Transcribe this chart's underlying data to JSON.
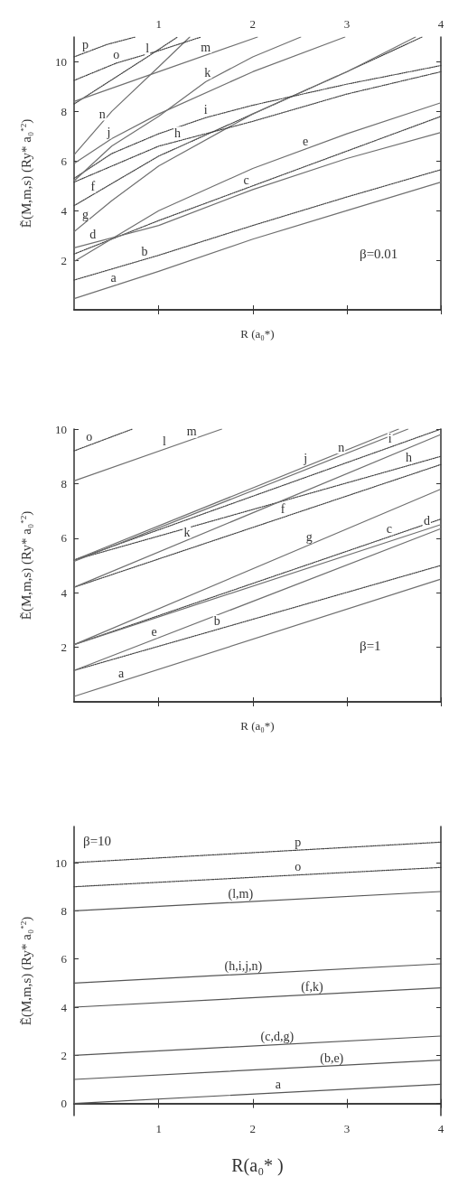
{
  "chart_data": [
    {
      "type": "line",
      "xlabel": "R (a₀*)",
      "ylabel": "Ẽ(M,m,s) (Ry* a₀$^{*2}$)",
      "marker": "none",
      "xlim": [
        0.1,
        4
      ],
      "ylim": [
        0,
        11
      ],
      "xticks": [
        1,
        2,
        3,
        4
      ],
      "yticks": [
        2,
        4,
        6,
        8,
        10
      ],
      "series": [
        {
          "color": "#707070",
          "line_style": "solid",
          "x": [
            0.1,
            1,
            2,
            3,
            4
          ],
          "values": [
            0.45,
            1.55,
            2.85,
            4.0,
            5.15
          ]
        },
        {
          "color": "#404040",
          "line_style": "dotted",
          "x": [
            0.1,
            1,
            2,
            3,
            4
          ],
          "values": [
            1.2,
            2.2,
            3.4,
            4.55,
            5.65
          ]
        },
        {
          "color": "#404040",
          "line_style": "dotted",
          "x": [
            0.1,
            1,
            2,
            3,
            4
          ],
          "values": [
            2.25,
            3.6,
            5.0,
            6.4,
            7.8
          ]
        },
        {
          "color": "#707070",
          "line_style": "solid",
          "x": [
            0.1,
            1,
            2,
            3,
            4
          ],
          "values": [
            2.5,
            3.4,
            4.85,
            6.1,
            7.15
          ]
        },
        {
          "color": "#707070",
          "line_style": "solid",
          "x": [
            0.1,
            1,
            2,
            3,
            4
          ],
          "values": [
            1.95,
            4.0,
            5.7,
            7.1,
            8.35
          ]
        },
        {
          "color": "#404040",
          "line_style": "dotted",
          "x": [
            0.1,
            1,
            2,
            3,
            3.8
          ],
          "values": [
            4.2,
            6.2,
            7.9,
            9.6,
            11
          ]
        },
        {
          "color": "#707070",
          "line_style": "solid",
          "x": [
            0.1,
            0.5,
            1,
            2,
            3,
            3.73
          ],
          "values": [
            3.15,
            4.4,
            5.8,
            7.9,
            9.6,
            11
          ]
        },
        {
          "color": "#404040",
          "line_style": "dotted",
          "x": [
            0.1,
            1,
            2,
            3,
            4
          ],
          "values": [
            5.15,
            6.6,
            7.6,
            8.7,
            9.6
          ]
        },
        {
          "color": "#404040",
          "line_style": "dotted",
          "x": [
            0.1,
            0.5,
            1,
            1.5,
            2,
            3,
            4
          ],
          "values": [
            5.3,
            6.3,
            7.1,
            7.75,
            8.25,
            9.1,
            9.85
          ]
        },
        {
          "color": "#707070",
          "line_style": "solid",
          "x": [
            0.1,
            0.5,
            1,
            2,
            2.98
          ],
          "values": [
            5.9,
            6.9,
            7.9,
            9.6,
            11
          ]
        },
        {
          "color": "#707070",
          "line_style": "solid",
          "x": [
            0.1,
            0.5,
            1,
            1.5,
            2,
            2.51
          ],
          "values": [
            5.2,
            6.6,
            7.8,
            9.2,
            10.2,
            11
          ]
        },
        {
          "color": "#404040",
          "line_style": "dotted",
          "x": [
            0.1,
            0.88,
            1.2
          ],
          "values": [
            8.3,
            10.2,
            11
          ]
        },
        {
          "color": "#707070",
          "line_style": "solid",
          "x": [
            0.1,
            1,
            2.05
          ],
          "values": [
            8.4,
            9.6,
            11
          ]
        },
        {
          "color": "#707070",
          "line_style": "solid",
          "x": [
            0.1,
            0.5,
            1,
            1.33
          ],
          "values": [
            6.25,
            8.0,
            9.8,
            11
          ]
        },
        {
          "color": "#404040",
          "line_style": "dotted",
          "x": [
            0.1,
            0.55,
            1,
            1.45
          ],
          "values": [
            9.25,
            9.95,
            10.45,
            11
          ]
        },
        {
          "color": "#404040",
          "line_style": "dotted",
          "x": [
            0.1,
            0.45,
            0.75
          ],
          "values": [
            10.2,
            10.7,
            11
          ]
        }
      ],
      "annotations": [
        "β=0.01",
        {
          "text": "a",
          "x": 0.52,
          "y": 0.96
        },
        {
          "text": "b",
          "x": 0.85,
          "y": 2.03
        },
        {
          "text": "c",
          "x": 1.93,
          "y": 4.9
        },
        {
          "text": "d",
          "x": 0.3,
          "y": 2.7
        },
        {
          "text": "e",
          "x": 2.56,
          "y": 6.48
        },
        {
          "text": "f",
          "x": 0.3,
          "y": 4.64
        },
        {
          "text": "g",
          "x": 0.22,
          "y": 3.53
        },
        {
          "text": "h",
          "x": 1.2,
          "y": 6.8
        },
        {
          "text": "i",
          "x": 1.5,
          "y": 7.75
        },
        {
          "text": "j",
          "x": 0.47,
          "y": 6.83
        },
        {
          "text": "k",
          "x": 1.52,
          "y": 9.24
        },
        {
          "text": "l",
          "x": 0.88,
          "y": 10.2
        },
        {
          "text": "m",
          "x": 1.5,
          "y": 10.27
        },
        {
          "text": "n",
          "x": 0.4,
          "y": 7.56
        },
        {
          "text": "o",
          "x": 0.55,
          "y": 9.95
        },
        {
          "text": "p",
          "x": 0.22,
          "y": 10.37
        }
      ]
    },
    {
      "type": "line",
      "xlabel": "R (a₀*)",
      "ylabel": "Ẽ(M,m,s) (Ry* a₀$^{*2}$)",
      "marker": "none",
      "xlim": [
        0.1,
        4
      ],
      "ylim": [
        0,
        10
      ],
      "tick_labels": "y",
      "xticks": [
        {
          "value": 1,
          "label": null
        },
        {
          "value": 2,
          "label": null
        },
        {
          "value": 3,
          "label": null
        },
        {
          "value": 4,
          "label": null
        }
      ],
      "yticks": [
        2,
        4,
        6,
        8,
        10
      ],
      "series": [
        {
          "color": "#707070",
          "line_style": "solid",
          "x": [
            0.1,
            4
          ],
          "values": [
            0.2,
            4.5
          ]
        },
        {
          "color": "#404040",
          "line_style": "dotted",
          "x": [
            0.1,
            4
          ],
          "values": [
            1.15,
            5.0
          ]
        },
        {
          "color": "#404040",
          "line_style": "dotted",
          "x": [
            0.1,
            4
          ],
          "values": [
            2.1,
            6.7
          ]
        },
        {
          "color": "#707070",
          "line_style": "solid",
          "x": [
            0.1,
            4
          ],
          "values": [
            2.1,
            6.5
          ]
        },
        {
          "color": "#707070",
          "line_style": "solid",
          "x": [
            0.1,
            4
          ],
          "values": [
            1.15,
            6.35
          ]
        },
        {
          "color": "#404040",
          "line_style": "dotted",
          "x": [
            0.1,
            4
          ],
          "values": [
            4.2,
            8.7
          ]
        },
        {
          "color": "#707070",
          "line_style": "solid",
          "x": [
            0.1,
            4
          ],
          "values": [
            2.1,
            7.8
          ]
        },
        {
          "color": "#404040",
          "line_style": "dotted",
          "x": [
            0.1,
            4
          ],
          "values": [
            5.2,
            9.0
          ]
        },
        {
          "color": "#404040",
          "line_style": "dotted",
          "x": [
            0.1,
            4
          ],
          "values": [
            5.2,
            10.0
          ]
        },
        {
          "color": "#707070",
          "line_style": "solid",
          "x": [
            0.1,
            3.55
          ],
          "values": [
            5.2,
            10.0
          ]
        },
        {
          "color": "#707070",
          "line_style": "solid",
          "x": [
            0.1,
            4
          ],
          "values": [
            4.2,
            9.8
          ]
        },
        {
          "color": "#707070",
          "line_style": "solid",
          "x": [
            0.1,
            1.67
          ],
          "values": [
            8.1,
            10.0
          ]
        },
        {
          "color": "#404040",
          "line_style": "dotted",
          "x": [
            0.1,
            0.72
          ],
          "values": [
            9.2,
            10.0
          ]
        },
        {
          "color": "#707070",
          "line_style": "solid",
          "x": [
            0.1,
            3.65
          ],
          "values": [
            5.15,
            10.0
          ]
        }
      ],
      "annotations": [
        "β=1",
        {
          "text": "a",
          "x": 0.6,
          "y": 0.75
        },
        {
          "text": "b",
          "x": 1.62,
          "y": 2.65
        },
        {
          "text": "c",
          "x": 3.45,
          "y": 6.05
        },
        {
          "text": "d",
          "x": 3.85,
          "y": 6.33
        },
        {
          "text": "e",
          "x": 0.95,
          "y": 2.28
        },
        {
          "text": "f",
          "x": 2.32,
          "y": 6.76
        },
        {
          "text": "g",
          "x": 2.6,
          "y": 5.75
        },
        {
          "text": "h",
          "x": 3.66,
          "y": 8.67
        },
        {
          "text": "i",
          "x": 3.46,
          "y": 9.34
        },
        {
          "text": "j",
          "x": 2.56,
          "y": 8.62
        },
        {
          "text": "k",
          "x": 1.3,
          "y": 5.92
        },
        {
          "text": "l",
          "x": 1.06,
          "y": 9.26
        },
        {
          "text": "m",
          "x": 1.35,
          "y": 9.61
        },
        {
          "text": "n",
          "x": 2.94,
          "y": 9.03
        },
        {
          "text": "o",
          "x": 0.26,
          "y": 9.41
        }
      ]
    },
    {
      "type": "line",
      "xlabel": "R(a₀* )",
      "ylabel": "Ẽ(M,m,s) (Ry* a₀$^{*2}$)",
      "marker": "none",
      "xlim": [
        0.1,
        4
      ],
      "ylim": [
        -0.5,
        11.5
      ],
      "xticks": [
        1,
        2,
        3,
        4
      ],
      "yticks": [
        0,
        2,
        4,
        6,
        8,
        10
      ],
      "series": [
        {
          "color": "#555555",
          "line_style": "solid",
          "x": [
            0.1,
            4
          ],
          "values": [
            0,
            0.8
          ]
        },
        {
          "color": "#555555",
          "line_style": "solid",
          "x": [
            0.1,
            4
          ],
          "values": [
            1,
            1.8
          ]
        },
        {
          "color": "#555555",
          "line_style": "solid",
          "x": [
            0.1,
            4
          ],
          "values": [
            2,
            2.8
          ]
        },
        {
          "color": "#555555",
          "line_style": "solid",
          "x": [
            0.1,
            4
          ],
          "values": [
            4,
            4.8
          ]
        },
        {
          "color": "#555555",
          "line_style": "solid",
          "x": [
            0.1,
            4
          ],
          "values": [
            5,
            5.8
          ]
        },
        {
          "color": "#555555",
          "line_style": "solid",
          "x": [
            0.1,
            4
          ],
          "values": [
            8,
            8.8
          ]
        },
        {
          "color": "#404040",
          "line_style": "dotted",
          "x": [
            0.1,
            4
          ],
          "values": [
            9,
            9.8
          ]
        },
        {
          "color": "#404040",
          "line_style": "dotted",
          "x": [
            0.1,
            4
          ],
          "values": [
            10,
            10.85
          ]
        }
      ],
      "annotations": [
        "β=10",
        {
          "text": "a",
          "x": 2.27,
          "y": 0.45
        },
        {
          "text": "(b,e)",
          "x": 2.84,
          "y": 1.56
        },
        {
          "text": "(c,d,g)",
          "x": 2.26,
          "y": 2.44
        },
        {
          "text": "(f,k)",
          "x": 2.63,
          "y": 4.52
        },
        {
          "text": "(h,i,j,n)",
          "x": 1.9,
          "y": 5.37
        },
        {
          "text": "(l,m)",
          "x": 1.87,
          "y": 8.36
        },
        {
          "text": "o",
          "x": 2.48,
          "y": 9.49
        },
        {
          "text": "p",
          "x": 2.48,
          "y": 10.52
        }
      ]
    }
  ]
}
